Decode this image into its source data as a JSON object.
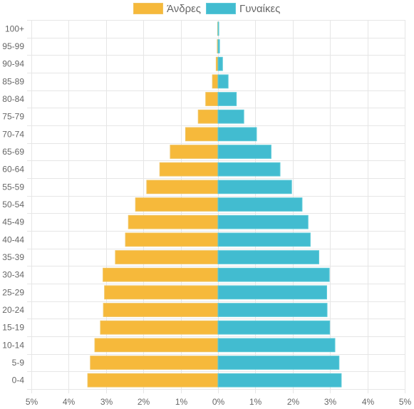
{
  "colors": {
    "men": "#F6B93B",
    "men_border": "#F0C35E",
    "women": "#42BCD0",
    "women_border": "#5ECAD8",
    "grid": "#e6e6e6",
    "text": "#666666"
  },
  "legend": {
    "men_label": "Άνδρες",
    "women_label": "Γυναίκες"
  },
  "chart_data": {
    "type": "bar",
    "orientation": "horizontal",
    "title": "",
    "xlabel": "",
    "ylabel": "",
    "grid": true,
    "legend_position": "top",
    "xlim": [
      -5,
      5
    ],
    "x_ticks": [
      -5,
      -4,
      -3,
      -2,
      -1,
      0,
      1,
      2,
      3,
      4,
      5
    ],
    "x_tick_labels": [
      "5%",
      "4%",
      "3%",
      "2%",
      "1%",
      "0%",
      "1%",
      "2%",
      "3%",
      "4%",
      "5%"
    ],
    "categories": [
      "100+",
      "95-99",
      "90-94",
      "85-89",
      "80-84",
      "75-79",
      "70-74",
      "65-69",
      "60-64",
      "55-59",
      "50-54",
      "45-49",
      "40-44",
      "35-39",
      "30-34",
      "25-29",
      "20-24",
      "15-19",
      "10-14",
      "5-9",
      "0-4"
    ],
    "series": [
      {
        "name": "Άνδρες",
        "values": [
          -0.01,
          -0.02,
          -0.05,
          -0.15,
          -0.33,
          -0.53,
          -0.87,
          -1.28,
          -1.56,
          -1.91,
          -2.21,
          -2.4,
          -2.48,
          -2.75,
          -3.08,
          -3.04,
          -3.07,
          -3.15,
          -3.3,
          -3.42,
          -3.49
        ]
      },
      {
        "name": "Γυναίκες",
        "values": [
          0.02,
          0.04,
          0.12,
          0.27,
          0.49,
          0.69,
          1.03,
          1.42,
          1.66,
          1.97,
          2.25,
          2.41,
          2.47,
          2.7,
          2.98,
          2.91,
          2.92,
          2.99,
          3.13,
          3.24,
          3.3
        ]
      }
    ]
  }
}
